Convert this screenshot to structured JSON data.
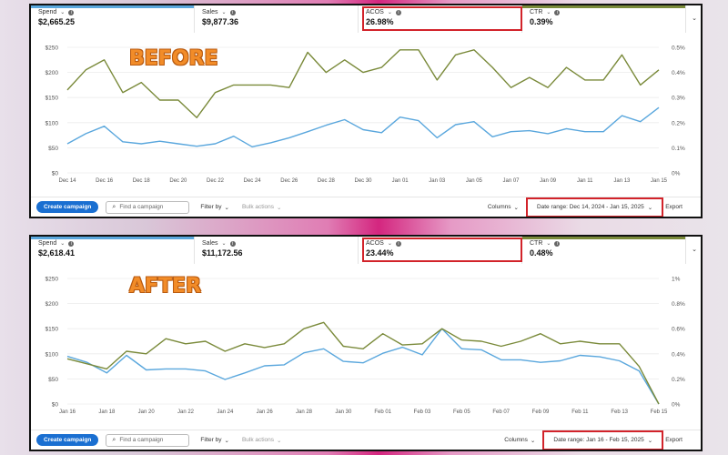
{
  "before": {
    "tag": "BEFORE",
    "metrics": [
      {
        "label": "Spend",
        "value": "$2,665.25",
        "color": "#5aa7dd"
      },
      {
        "label": "Sales",
        "value": "$9,877.36",
        "color": "#ffffff"
      },
      {
        "label": "ACOS",
        "value": "26.98%",
        "color": "#ffffff"
      },
      {
        "label": "CTR",
        "value": "0.39%",
        "color": "#7a8a3a"
      }
    ],
    "toolbar": {
      "create": "Create campaign",
      "search_placeholder": "Find a campaign",
      "filter": "Filter by",
      "bulk": "Bulk actions",
      "columns": "Columns",
      "date_range": "Date range: Dec 14, 2024 - Jan 15, 2025",
      "export": "Export"
    },
    "chart_data": {
      "type": "line",
      "x": [
        "Dec 14",
        "Dec 15",
        "Dec 16",
        "Dec 17",
        "Dec 18",
        "Dec 19",
        "Dec 20",
        "Dec 21",
        "Dec 22",
        "Dec 23",
        "Dec 24",
        "Dec 25",
        "Dec 26",
        "Dec 27",
        "Dec 28",
        "Dec 29",
        "Dec 30",
        "Dec 31",
        "Jan 01",
        "Jan 02",
        "Jan 03",
        "Jan 04",
        "Jan 05",
        "Jan 06",
        "Jan 07",
        "Jan 08",
        "Jan 09",
        "Jan 10",
        "Jan 11",
        "Jan 12",
        "Jan 13",
        "Jan 14",
        "Jan 15"
      ],
      "x_ticks": [
        "Dec 14",
        "Dec 16",
        "Dec 18",
        "Dec 20",
        "Dec 22",
        "Dec 24",
        "Dec 26",
        "Dec 28",
        "Dec 30",
        "Jan 01",
        "Jan 03",
        "Jan 05",
        "Jan 07",
        "Jan 09",
        "Jan 11",
        "Jan 13",
        "Jan 15"
      ],
      "y_left_ticks": [
        "$0",
        "$50",
        "$100",
        "$150",
        "$200",
        "$250"
      ],
      "y_right_ticks": [
        "0%",
        "0.1%",
        "0.2%",
        "0.3%",
        "0.4%",
        "0.5%"
      ],
      "ylim_left": [
        0,
        250
      ],
      "ylim_right": [
        0,
        0.5
      ],
      "series": [
        {
          "axis": "left",
          "color": "#5aa7dd",
          "values": [
            58,
            78,
            93,
            62,
            58,
            63,
            58,
            53,
            58,
            73,
            52,
            60,
            70,
            82,
            95,
            106,
            86,
            80,
            111,
            104,
            70,
            96,
            102,
            72,
            82,
            84,
            78,
            88,
            82,
            82,
            114,
            102,
            130
          ]
        },
        {
          "axis": "right",
          "color": "#7a8a3a",
          "values": [
            0.33,
            0.41,
            0.45,
            0.32,
            0.36,
            0.29,
            0.29,
            0.22,
            0.32,
            0.35,
            0.35,
            0.35,
            0.34,
            0.48,
            0.4,
            0.45,
            0.4,
            0.42,
            0.49,
            0.49,
            0.37,
            0.47,
            0.49,
            0.42,
            0.34,
            0.38,
            0.34,
            0.42,
            0.37,
            0.37,
            0.47,
            0.35,
            0.41
          ]
        }
      ]
    }
  },
  "after": {
    "tag": "AFTER",
    "metrics": [
      {
        "label": "Spend",
        "value": "$2,618.41",
        "color": "#5aa7dd"
      },
      {
        "label": "Sales",
        "value": "$11,172.56",
        "color": "#ffffff"
      },
      {
        "label": "ACOS",
        "value": "23.44%",
        "color": "#ffffff"
      },
      {
        "label": "CTR",
        "value": "0.48%",
        "color": "#7a8a3a"
      }
    ],
    "toolbar": {
      "create": "Create campaign",
      "search_placeholder": "Find a campaign",
      "filter": "Filter by",
      "bulk": "Bulk actions",
      "columns": "Columns",
      "date_range": "Date range: Jan 16 - Feb 15, 2025",
      "export": "Export"
    },
    "chart_data": {
      "type": "line",
      "x": [
        "Jan 16",
        "Jan 17",
        "Jan 18",
        "Jan 19",
        "Jan 20",
        "Jan 21",
        "Jan 22",
        "Jan 23",
        "Jan 24",
        "Jan 25",
        "Jan 26",
        "Jan 27",
        "Jan 28",
        "Jan 29",
        "Jan 30",
        "Jan 31",
        "Feb 01",
        "Feb 02",
        "Feb 03",
        "Feb 04",
        "Feb 05",
        "Feb 06",
        "Feb 07",
        "Feb 08",
        "Feb 09",
        "Feb 10",
        "Feb 11",
        "Feb 12",
        "Feb 13",
        "Feb 14",
        "Feb 15"
      ],
      "x_ticks": [
        "Jan 16",
        "Jan 18",
        "Jan 20",
        "Jan 22",
        "Jan 24",
        "Jan 26",
        "Jan 28",
        "Jan 30",
        "Feb 01",
        "Feb 03",
        "Feb 05",
        "Feb 07",
        "Feb 09",
        "Feb 11",
        "Feb 13",
        "Feb 15"
      ],
      "y_left_ticks": [
        "$0",
        "$50",
        "$100",
        "$150",
        "$200",
        "$250"
      ],
      "y_right_ticks": [
        "0%",
        "0.2%",
        "0.4%",
        "0.6%",
        "0.8%",
        "1%"
      ],
      "ylim_left": [
        0,
        250
      ],
      "ylim_right": [
        0,
        1
      ],
      "series": [
        {
          "axis": "left",
          "color": "#5aa7dd",
          "values": [
            95,
            83,
            62,
            97,
            68,
            70,
            70,
            66,
            49,
            62,
            76,
            78,
            102,
            110,
            85,
            82,
            101,
            113,
            98,
            150,
            110,
            108,
            88,
            88,
            83,
            86,
            97,
            94,
            86,
            66,
            0
          ]
        },
        {
          "axis": "right",
          "color": "#7a8a3a",
          "values": [
            0.36,
            0.32,
            0.28,
            0.42,
            0.4,
            0.52,
            0.48,
            0.5,
            0.42,
            0.48,
            0.45,
            0.48,
            0.6,
            0.65,
            0.46,
            0.44,
            0.56,
            0.47,
            0.48,
            0.6,
            0.51,
            0.5,
            0.46,
            0.5,
            0.56,
            0.48,
            0.5,
            0.48,
            0.48,
            0.3,
            0.0
          ]
        }
      ]
    }
  }
}
